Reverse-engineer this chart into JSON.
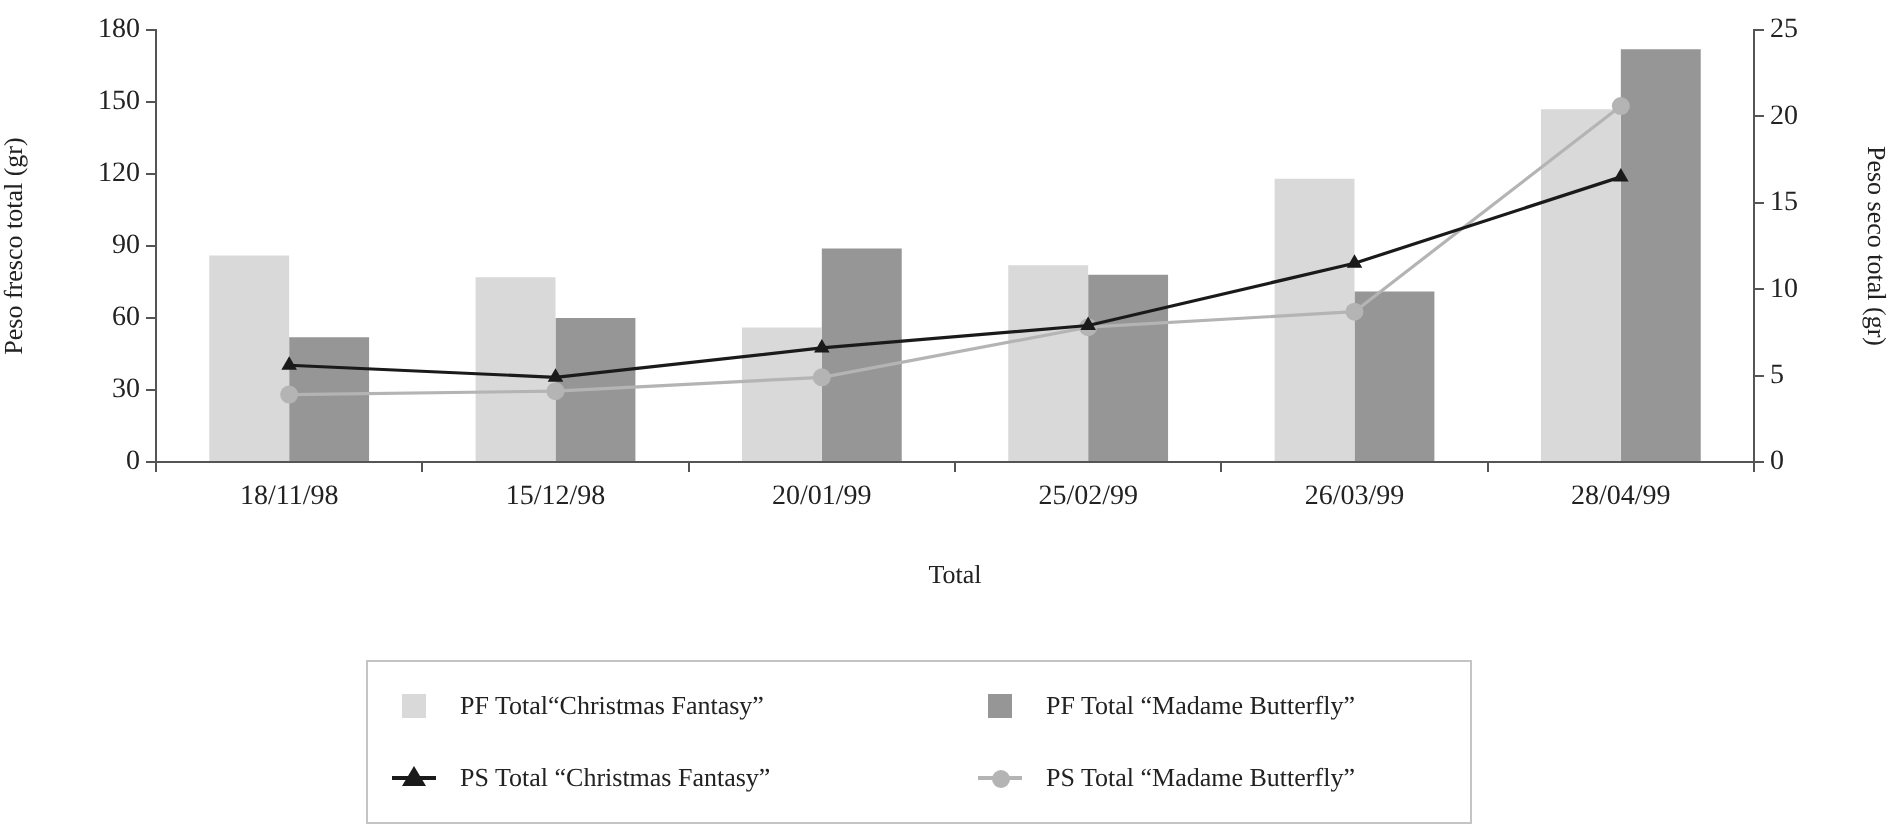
{
  "chart_data": {
    "type": "bar",
    "xlabel": "Total",
    "ylabel": "Peso fresco total (gr)",
    "y2label": "Peso seco total (gr)",
    "categories": [
      "18/11/98",
      "15/12/98",
      "20/01/99",
      "25/02/99",
      "26/03/99",
      "28/04/99"
    ],
    "series": [
      {
        "name": "PF Total“Christmas Fantasy”",
        "color": "#d9d9d9",
        "values": [
          86,
          77,
          56,
          82,
          118,
          147
        ]
      },
      {
        "name": "PF Total “Madame Butterfly”",
        "color": "#969696",
        "values": [
          52,
          60,
          89,
          78,
          71,
          172
        ]
      },
      {
        "name": "PS Total “Christmas Fantasy”",
        "type": "line",
        "axis": "y2",
        "color": "#1a1a1a",
        "marker": "triangle",
        "values": [
          5.6,
          4.9,
          6.6,
          7.9,
          11.5,
          16.5
        ]
      },
      {
        "name": "PS Total “Madame Butterfly”",
        "type": "line",
        "axis": "y2",
        "color": "#b4b4b4",
        "marker": "circle",
        "values": [
          3.9,
          4.1,
          4.9,
          7.8,
          8.7,
          20.6
        ]
      }
    ],
    "ylim": [
      0,
      180
    ],
    "yticks": [
      0,
      30,
      60,
      90,
      120,
      150,
      180
    ],
    "y2lim": [
      0,
      25
    ],
    "y2ticks": [
      0,
      5,
      10,
      15,
      20,
      25
    ],
    "grid": false,
    "legend": "bottom"
  }
}
